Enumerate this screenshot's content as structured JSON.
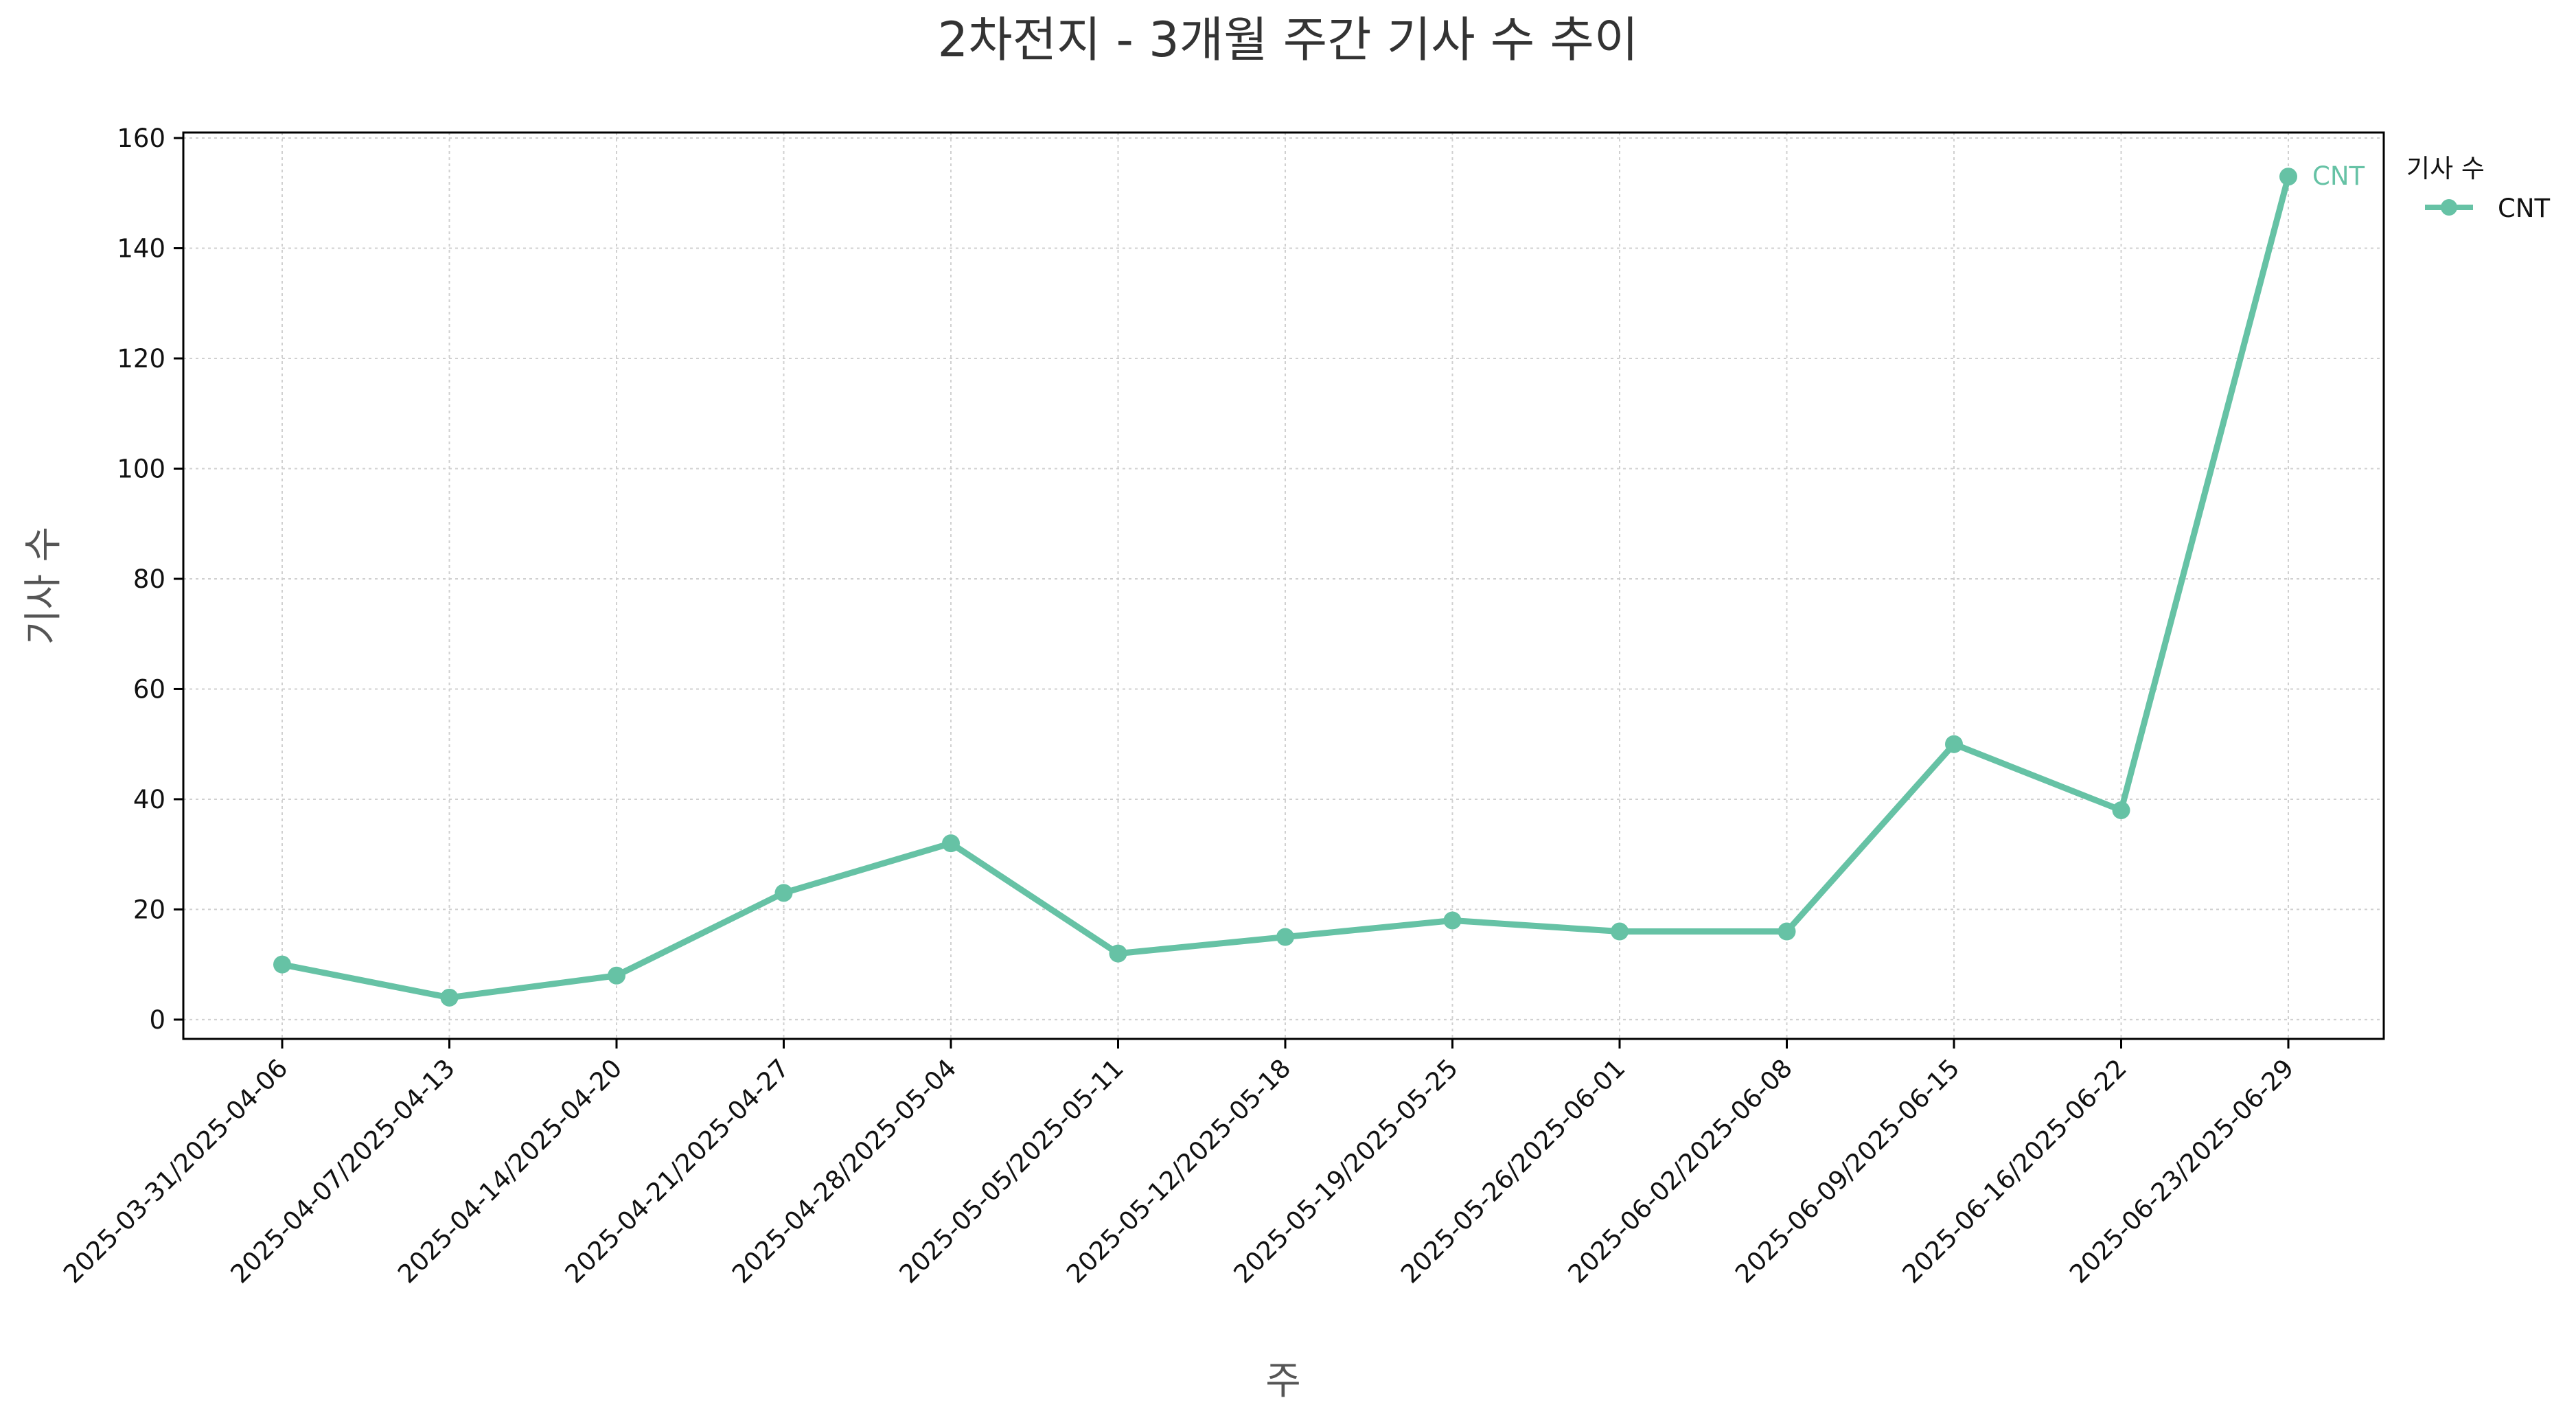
{
  "chart_data": {
    "type": "line",
    "title": "2차전지 - 3개월 주간 기사 수 추이",
    "xlabel": "주",
    "ylabel": "기사 수",
    "categories": [
      "2025-03-31/2025-04-06",
      "2025-04-07/2025-04-13",
      "2025-04-14/2025-04-20",
      "2025-04-21/2025-04-27",
      "2025-04-28/2025-05-04",
      "2025-05-05/2025-05-11",
      "2025-05-12/2025-05-18",
      "2025-05-19/2025-05-25",
      "2025-05-26/2025-06-01",
      "2025-06-02/2025-06-08",
      "2025-06-09/2025-06-15",
      "2025-06-16/2025-06-22",
      "2025-06-23/2025-06-29"
    ],
    "series": [
      {
        "name": "CNT",
        "color": "#66c2a5",
        "values": [
          10,
          4,
          8,
          23,
          32,
          12,
          15,
          18,
          16,
          16,
          50,
          38,
          153
        ]
      }
    ],
    "ylim": [
      -3.5,
      161
    ],
    "yticks": [
      0,
      20,
      40,
      60,
      80,
      100,
      120,
      140,
      160
    ],
    "grid": true,
    "legend": {
      "title": "기사 수",
      "placement": "outside-top-right"
    },
    "end_label": "CNT"
  }
}
